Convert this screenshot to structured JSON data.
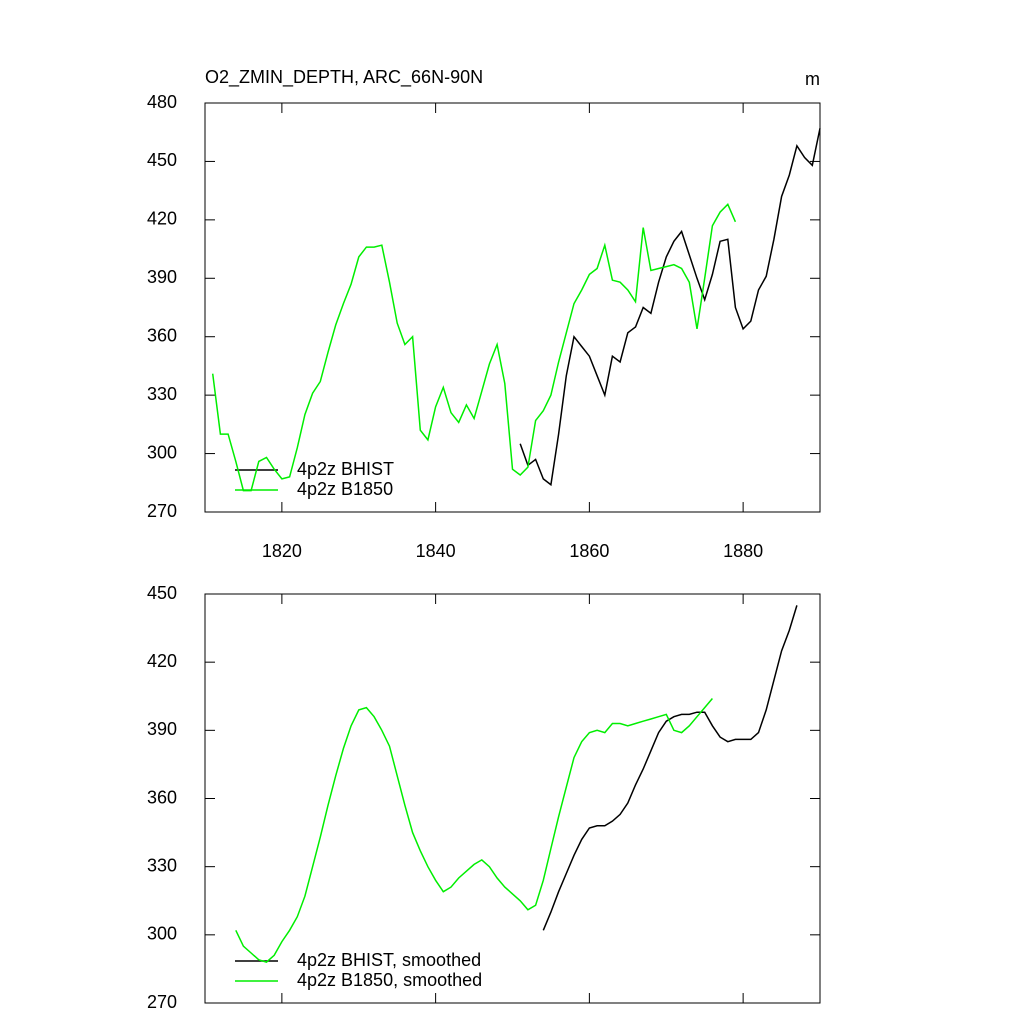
{
  "chart_data": [
    {
      "type": "line",
      "title": "O2_ZMIN_DEPTH, ARC_66N-90N",
      "units": "m",
      "legend": "lower left",
      "xlim": [
        1810,
        1890
      ],
      "xticks": [
        1820,
        1840,
        1860,
        1880
      ],
      "ylim": [
        270,
        480
      ],
      "yticks": [
        270,
        300,
        330,
        360,
        390,
        420,
        450,
        480
      ],
      "series": [
        {
          "name": "4p2z BHIST",
          "color": "#000000",
          "x": [
            1851,
            1852,
            1853,
            1854,
            1855,
            1856,
            1857,
            1858,
            1859,
            1860,
            1861,
            1862,
            1863,
            1864,
            1865,
            1866,
            1867,
            1868,
            1869,
            1870,
            1871,
            1872,
            1873,
            1874,
            1875,
            1876,
            1877,
            1878,
            1879,
            1880,
            1881,
            1882,
            1883,
            1884,
            1885,
            1886,
            1887,
            1888,
            1889,
            1890
          ],
          "values": [
            305,
            294,
            297,
            287,
            284,
            310,
            340,
            360,
            355,
            350,
            340,
            330,
            350,
            347,
            362,
            365,
            375,
            372,
            388,
            401,
            409,
            414,
            402,
            390,
            379,
            392,
            409,
            410,
            375,
            364,
            368,
            384,
            391,
            410,
            432,
            443,
            458,
            452,
            448,
            467
          ]
        },
        {
          "name": "4p2z B1850",
          "color": "#00ee00",
          "x": [
            1811,
            1812,
            1813,
            1814,
            1815,
            1816,
            1817,
            1818,
            1819,
            1820,
            1821,
            1822,
            1823,
            1824,
            1825,
            1826,
            1827,
            1828,
            1829,
            1830,
            1831,
            1832,
            1833,
            1834,
            1835,
            1836,
            1837,
            1838,
            1839,
            1840,
            1841,
            1842,
            1843,
            1844,
            1845,
            1846,
            1847,
            1848,
            1849,
            1850,
            1851,
            1852,
            1853,
            1854,
            1855,
            1856,
            1857,
            1858,
            1859,
            1860,
            1861,
            1862,
            1863,
            1864,
            1865,
            1866,
            1867,
            1868,
            1869,
            1870,
            1871,
            1872,
            1873,
            1874,
            1875,
            1876,
            1877,
            1878,
            1879
          ],
          "values": [
            341,
            310,
            310,
            296,
            281,
            281,
            296,
            298,
            292,
            287,
            288,
            303,
            320,
            331,
            337,
            352,
            366,
            377,
            387,
            401,
            406,
            406,
            407,
            388,
            367,
            356,
            360,
            312,
            307,
            324,
            334,
            321,
            316,
            325,
            318,
            332,
            346,
            356,
            336,
            292,
            289,
            293,
            317,
            322,
            330,
            347,
            362,
            377,
            384,
            392,
            395,
            407,
            389,
            388,
            384,
            378,
            416,
            394,
            395,
            396,
            397,
            395,
            388,
            364,
            390,
            417,
            424,
            428,
            419
          ]
        }
      ]
    },
    {
      "type": "line",
      "legend": "lower left",
      "xlim": [
        1810,
        1890
      ],
      "ylim": [
        270,
        450
      ],
      "yticks": [
        270,
        300,
        330,
        360,
        390,
        420,
        450
      ],
      "series": [
        {
          "name": "4p2z BHIST, smoothed",
          "color": "#000000",
          "x": [
            1854,
            1855,
            1856,
            1857,
            1858,
            1859,
            1860,
            1861,
            1862,
            1863,
            1864,
            1865,
            1866,
            1867,
            1868,
            1869,
            1870,
            1871,
            1872,
            1873,
            1874,
            1875,
            1876,
            1877,
            1878,
            1879,
            1880,
            1881,
            1882,
            1883,
            1884,
            1885,
            1886,
            1887
          ],
          "values": [
            302,
            310,
            319,
            327,
            335,
            342,
            347,
            348,
            348,
            350,
            353,
            358,
            366,
            373,
            381,
            389,
            394,
            396,
            397,
            397,
            398,
            398,
            392,
            387,
            385,
            386,
            386,
            386,
            389,
            399,
            412,
            425,
            434,
            445
          ]
        },
        {
          "name": "4p2z B1850, smoothed",
          "color": "#00ee00",
          "x": [
            1814,
            1815,
            1816,
            1817,
            1818,
            1819,
            1820,
            1821,
            1822,
            1823,
            1824,
            1825,
            1826,
            1827,
            1828,
            1829,
            1830,
            1831,
            1832,
            1833,
            1834,
            1835,
            1836,
            1837,
            1838,
            1839,
            1840,
            1841,
            1842,
            1843,
            1844,
            1845,
            1846,
            1847,
            1848,
            1849,
            1850,
            1851,
            1852,
            1853,
            1854,
            1855,
            1856,
            1857,
            1858,
            1859,
            1860,
            1861,
            1862,
            1863,
            1864,
            1865,
            1866,
            1867,
            1868,
            1869,
            1870,
            1871,
            1872,
            1873,
            1874,
            1875,
            1876
          ],
          "values": [
            302,
            295,
            292,
            289,
            288,
            291,
            297,
            302,
            308,
            317,
            330,
            343,
            357,
            370,
            382,
            392,
            399,
            400,
            396,
            390,
            383,
            370,
            357,
            345,
            337,
            330,
            324,
            319,
            321,
            325,
            328,
            331,
            333,
            330,
            325,
            321,
            318,
            315,
            311,
            313,
            324,
            338,
            352,
            365,
            378,
            385,
            389,
            390,
            389,
            393,
            393,
            392,
            393,
            394,
            395,
            396,
            397,
            390,
            389,
            392,
            396,
            400,
            404
          ]
        }
      ]
    }
  ]
}
